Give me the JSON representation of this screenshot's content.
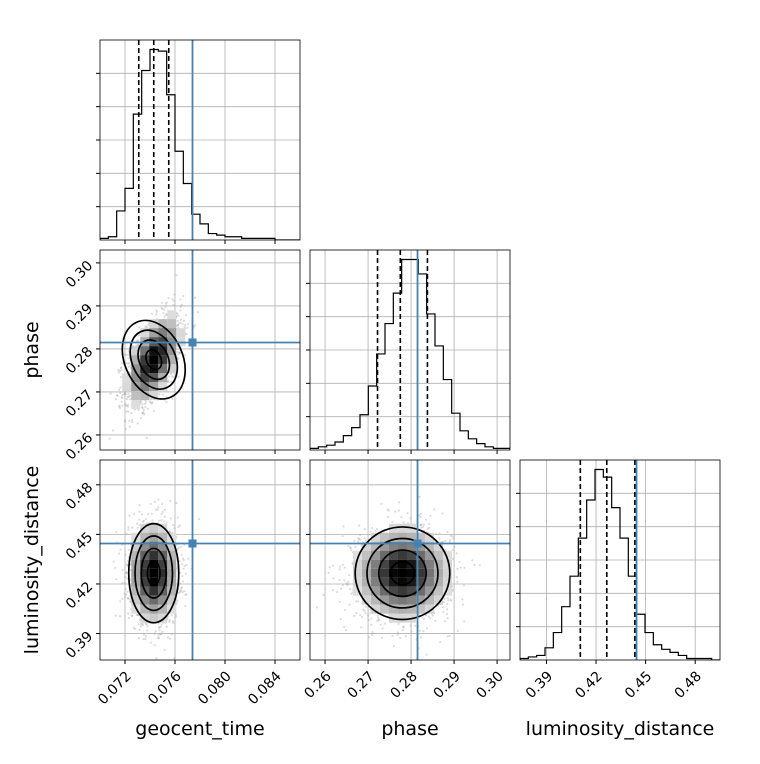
{
  "chart_data": {
    "type": "corner",
    "parameters": [
      {
        "key": "geocent_time",
        "label": "geocent_time",
        "range": [
          0.07,
          0.086
        ],
        "ticks": [
          "0.072",
          "0.076",
          "0.080",
          "0.084"
        ],
        "tick_values": [
          0.072,
          0.076,
          0.08,
          0.084
        ]
      },
      {
        "key": "phase",
        "label": "phase",
        "range": [
          0.2565,
          0.303
        ],
        "ticks": [
          "0.26",
          "0.27",
          "0.28",
          "0.29",
          "0.30"
        ],
        "tick_values": [
          0.26,
          0.27,
          0.28,
          0.29,
          0.3
        ]
      },
      {
        "key": "luminosity_distance",
        "label": "luminosity_distance",
        "range": [
          0.374,
          0.495
        ],
        "ticks": [
          "0.39",
          "0.42",
          "0.45",
          "0.48"
        ],
        "tick_values": [
          0.39,
          0.42,
          0.45,
          0.48
        ]
      }
    ],
    "truths": {
      "geocent_time": 0.0774,
      "phase": 0.2815,
      "luminosity_distance": 0.4445
    },
    "truth_color": "#4682b4",
    "quantiles": {
      "geocent_time": [
        0.0731,
        0.0743,
        0.0755
      ],
      "phase": [
        0.2722,
        0.2775,
        0.2838
      ],
      "luminosity_distance": [
        0.4105,
        0.4265,
        0.4435
      ]
    },
    "histograms": {
      "geocent_time": {
        "edges_range": [
          0.07,
          0.086
        ],
        "counts": [
          1,
          2,
          18,
          32,
          78,
          105,
          118,
          117,
          90,
          55,
          35,
          16,
          10,
          4,
          3,
          2,
          2,
          1,
          1,
          1,
          1,
          0,
          0,
          0
        ]
      },
      "phase": {
        "edges_range": [
          0.2565,
          0.303
        ],
        "counts": [
          1,
          2,
          3,
          5,
          9,
          14,
          22,
          40,
          60,
          79,
          98,
          119,
          119,
          110,
          85,
          65,
          44,
          23,
          12,
          7,
          4,
          2,
          1,
          1
        ]
      },
      "luminosity_distance": {
        "edges_range": [
          0.374,
          0.495
        ],
        "counts": [
          1,
          2,
          3,
          8,
          18,
          35,
          55,
          80,
          105,
          125,
          120,
          100,
          80,
          55,
          30,
          18,
          10,
          7,
          5,
          3,
          1,
          1,
          1,
          0
        ]
      }
    },
    "posterior_2d": {
      "phase_vs_geocent_time": {
        "mean": [
          0.0743,
          0.2775
        ],
        "sd": [
          0.0011,
          0.0052
        ],
        "corr": 0.55
      },
      "luminosity_distance_vs_geocent_time": {
        "mean": [
          0.0743,
          0.4265
        ],
        "sd": [
          0.001,
          0.015
        ],
        "corr": 0.0
      },
      "luminosity_distance_vs_phase": {
        "mean": [
          0.278,
          0.4265
        ],
        "sd": [
          0.0055,
          0.014
        ],
        "corr": 0.0
      }
    },
    "grid": true
  }
}
